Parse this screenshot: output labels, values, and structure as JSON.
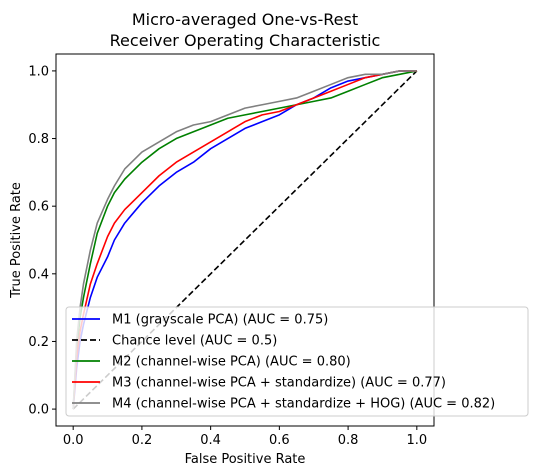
{
  "chart_data": {
    "type": "line",
    "title_line1": "Micro-averaged One-vs-Rest",
    "title_line2": "Receiver Operating Characteristic",
    "xlabel": "False Positive Rate",
    "ylabel": "True Positive Rate",
    "xlim": [
      -0.05,
      1.05
    ],
    "ylim": [
      -0.05,
      1.05
    ],
    "xticks": [
      0.0,
      0.2,
      0.4,
      0.6,
      0.8,
      1.0
    ],
    "xtick_labels": [
      "0.0",
      "0.2",
      "0.4",
      "0.6",
      "0.8",
      "1.0"
    ],
    "yticks": [
      0.0,
      0.2,
      0.4,
      0.6,
      0.8,
      1.0
    ],
    "ytick_labels": [
      "0.0",
      "0.2",
      "0.4",
      "0.6",
      "0.8",
      "1.0"
    ],
    "grid": false,
    "legend_position": "lower-right",
    "series": [
      {
        "name": "M1 (grayscale PCA) (AUC = 0.75)",
        "color": "#0000ff",
        "dash": "solid",
        "x": [
          0,
          0.01,
          0.02,
          0.03,
          0.05,
          0.07,
          0.1,
          0.12,
          0.15,
          0.2,
          0.25,
          0.3,
          0.35,
          0.4,
          0.45,
          0.5,
          0.55,
          0.6,
          0.65,
          0.7,
          0.75,
          0.8,
          0.85,
          0.9,
          0.95,
          1.0
        ],
        "y": [
          0,
          0.12,
          0.2,
          0.25,
          0.33,
          0.39,
          0.45,
          0.5,
          0.55,
          0.61,
          0.66,
          0.7,
          0.73,
          0.77,
          0.8,
          0.83,
          0.85,
          0.87,
          0.9,
          0.92,
          0.95,
          0.97,
          0.98,
          0.99,
          1.0,
          1.0
        ]
      },
      {
        "name": "Chance level (AUC = 0.5)",
        "color": "#000000",
        "dash": "dashed",
        "x": [
          0,
          1
        ],
        "y": [
          0,
          1
        ]
      },
      {
        "name": "M2 (channel-wise PCA) (AUC = 0.80)",
        "color": "#008000",
        "dash": "solid",
        "x": [
          0,
          0.01,
          0.02,
          0.03,
          0.05,
          0.07,
          0.1,
          0.12,
          0.15,
          0.2,
          0.25,
          0.3,
          0.35,
          0.4,
          0.45,
          0.5,
          0.55,
          0.6,
          0.65,
          0.7,
          0.75,
          0.8,
          0.85,
          0.9,
          0.95,
          1.0
        ],
        "y": [
          0,
          0.18,
          0.27,
          0.33,
          0.43,
          0.52,
          0.6,
          0.64,
          0.68,
          0.73,
          0.77,
          0.8,
          0.82,
          0.84,
          0.86,
          0.87,
          0.88,
          0.89,
          0.9,
          0.91,
          0.92,
          0.94,
          0.96,
          0.98,
          0.99,
          1.0
        ]
      },
      {
        "name": "M3 (channel-wise PCA + standardize) (AUC = 0.77)",
        "color": "#ff0000",
        "dash": "solid",
        "x": [
          0,
          0.01,
          0.02,
          0.03,
          0.05,
          0.07,
          0.1,
          0.12,
          0.15,
          0.2,
          0.25,
          0.3,
          0.35,
          0.4,
          0.45,
          0.5,
          0.55,
          0.6,
          0.65,
          0.7,
          0.75,
          0.8,
          0.85,
          0.9,
          0.95,
          1.0
        ],
        "y": [
          0,
          0.15,
          0.23,
          0.28,
          0.37,
          0.43,
          0.51,
          0.55,
          0.59,
          0.64,
          0.69,
          0.73,
          0.76,
          0.79,
          0.82,
          0.85,
          0.87,
          0.88,
          0.9,
          0.92,
          0.94,
          0.96,
          0.98,
          0.99,
          1.0,
          1.0
        ]
      },
      {
        "name": "M4 (channel-wise PCA + standardize + HOG) (AUC = 0.82)",
        "color": "#808080",
        "dash": "solid",
        "x": [
          0,
          0.01,
          0.02,
          0.03,
          0.05,
          0.07,
          0.1,
          0.12,
          0.15,
          0.2,
          0.25,
          0.3,
          0.35,
          0.4,
          0.45,
          0.5,
          0.55,
          0.6,
          0.65,
          0.7,
          0.75,
          0.8,
          0.85,
          0.9,
          0.95,
          1.0
        ],
        "y": [
          0,
          0.2,
          0.3,
          0.37,
          0.47,
          0.55,
          0.62,
          0.66,
          0.71,
          0.76,
          0.79,
          0.82,
          0.84,
          0.85,
          0.87,
          0.89,
          0.9,
          0.91,
          0.92,
          0.94,
          0.96,
          0.98,
          0.99,
          0.99,
          1.0,
          1.0
        ]
      }
    ]
  }
}
